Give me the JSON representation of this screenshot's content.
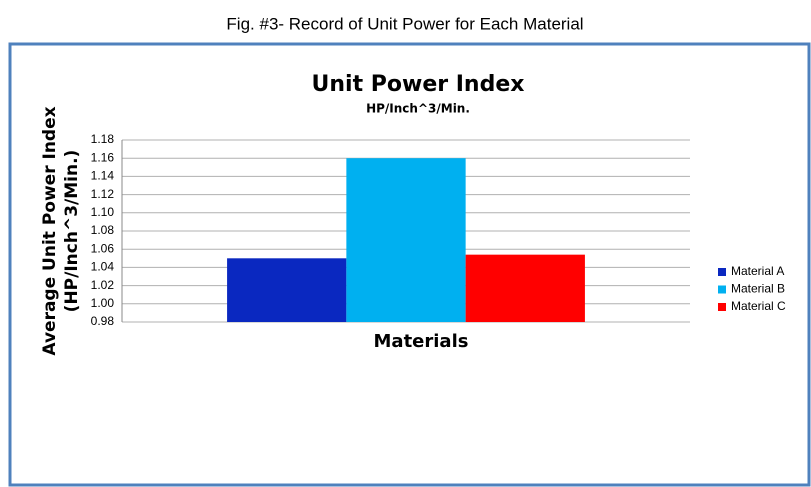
{
  "chart_data": {
    "type": "bar",
    "caption": "Fig. #3- Record of Unit Power for Each Material",
    "title": "Unit Power Index",
    "subtitle": "HP/Inch^3/Min.",
    "y_label": [
      "Average Unit Power Index",
      "(HP/Inch^3/Min.)"
    ],
    "x_label": "Materials",
    "categories": [
      null
    ],
    "series": [
      {
        "name": "Material A",
        "color": "#0a28c0",
        "values": [
          1.05
        ]
      },
      {
        "name": "Material B",
        "color": "#00b0f0",
        "values": [
          1.16
        ]
      },
      {
        "name": "Material C",
        "color": "#ff0000",
        "values": [
          1.054
        ]
      }
    ],
    "ylim": [
      0.98,
      1.18
    ],
    "yticks": [
      0.98,
      {
        "value": 1.0,
        "label": "1.00"
      },
      1.02,
      1.04,
      1.06,
      1.08,
      {
        "value": 1.1,
        "label": "1.10"
      },
      1.12,
      1.14,
      1.16,
      1.18
    ],
    "grid": true,
    "legend": "right"
  }
}
